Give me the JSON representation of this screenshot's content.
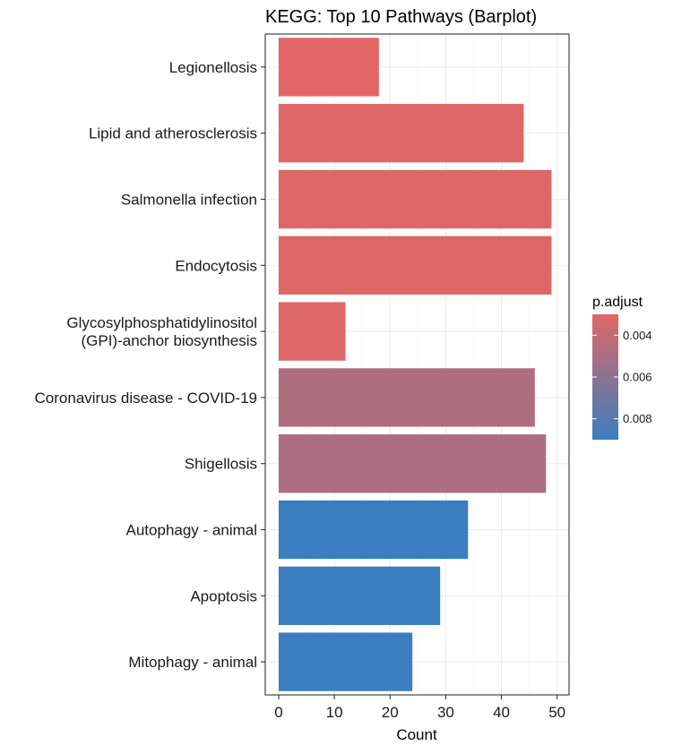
{
  "chart_data": {
    "type": "bar",
    "orientation": "horizontal",
    "title": "KEGG: Top 10 Pathways (Barplot)",
    "xlabel": "Count",
    "ylabel": "",
    "xlim": [
      0,
      51.5
    ],
    "x_ticks": [
      0,
      10,
      20,
      30,
      40,
      50
    ],
    "grid": true,
    "categories": [
      "Legionellosis",
      "Lipid and atherosclerosis",
      "Salmonella infection",
      "Endocytosis",
      "Glycosylphosphatidylinositol (GPI)-anchor biosynthesis",
      "Coronavirus disease - COVID-19",
      "Shigellosis",
      "Autophagy - animal",
      "Apoptosis",
      "Mitophagy - animal"
    ],
    "category_lines": [
      [
        "Legionellosis"
      ],
      [
        "Lipid and atherosclerosis"
      ],
      [
        "Salmonella infection"
      ],
      [
        "Endocytosis"
      ],
      [
        "Glycosylphosphatidylinositol",
        "(GPI)-anchor biosynthesis"
      ],
      [
        "Coronavirus disease - COVID-19"
      ],
      [
        "Shigellosis"
      ],
      [
        "Autophagy - animal"
      ],
      [
        "Apoptosis"
      ],
      [
        "Mitophagy - animal"
      ]
    ],
    "values": [
      18,
      44,
      49,
      49,
      12,
      46,
      48,
      34,
      29,
      24
    ],
    "p_adjust": [
      0.003,
      0.0031,
      0.0031,
      0.0031,
      0.0031,
      0.0048,
      0.0049,
      0.009,
      0.009,
      0.009
    ],
    "legend": {
      "title": "p.adjust",
      "position": "right",
      "ticks": [
        0.004,
        0.006,
        0.008
      ],
      "tick_labels": [
        "0.004",
        "0.006",
        "0.008"
      ],
      "range": [
        0.003,
        0.009
      ],
      "low_color": "#e06765",
      "high_color": "#3a7ebf"
    }
  }
}
